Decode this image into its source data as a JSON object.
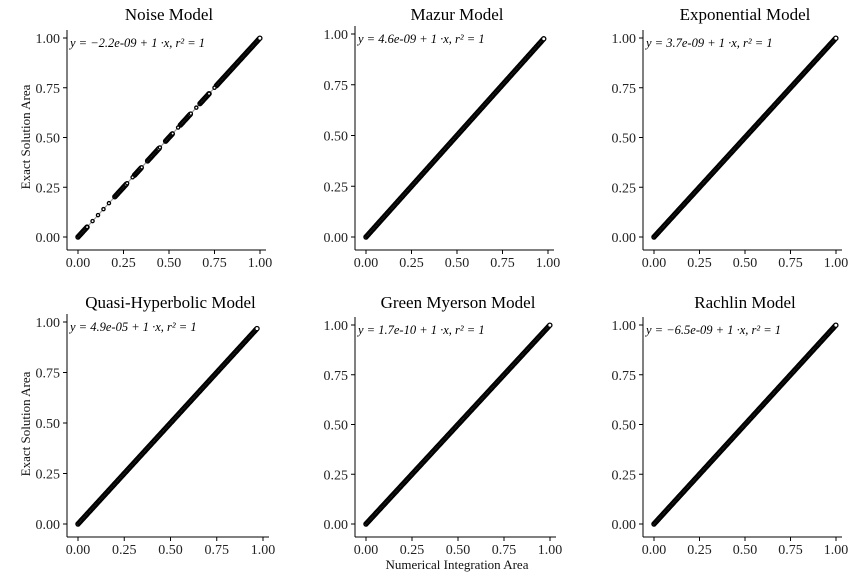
{
  "figure": {
    "xlabel": "Numerical Integration Area",
    "ylabel": "Exact Solution Area"
  },
  "chart_data": [
    {
      "type": "scatter",
      "title": "Noise Model",
      "equation": "y = −2.2e-09 + 1 ·x,  r² = 1",
      "xlim": [
        0,
        1
      ],
      "ylim": [
        0,
        1
      ],
      "xticks": [
        "0.00",
        "0.25",
        "0.50",
        "0.75",
        "1.00"
      ],
      "yticks": [
        "0.00",
        "0.25",
        "0.50",
        "0.75",
        "1.00"
      ],
      "fit": {
        "intercept": -2.2e-09,
        "slope": 1,
        "r2": 1
      },
      "points_x_range": [
        0,
        1.0
      ],
      "gaps": [
        [
          0.05,
          0.2
        ],
        [
          0.27,
          0.31
        ],
        [
          0.35,
          0.38
        ],
        [
          0.45,
          0.48
        ],
        [
          0.52,
          0.56
        ],
        [
          0.62,
          0.67
        ],
        [
          0.72,
          0.76
        ]
      ]
    },
    {
      "type": "scatter",
      "title": "Mazur Model",
      "equation": "y = 4.6e-09 + 1 ·x,  r² = 1",
      "xlim": [
        0,
        1
      ],
      "ylim": [
        0,
        1
      ],
      "xticks": [
        "0.00",
        "0.25",
        "0.50",
        "0.75",
        "1.00"
      ],
      "yticks": [
        "0.00",
        "0.25",
        "0.50",
        "0.75",
        "1.00"
      ],
      "fit": {
        "intercept": 4.6e-09,
        "slope": 1,
        "r2": 1
      },
      "points_x_range": [
        0,
        0.98
      ],
      "gaps": []
    },
    {
      "type": "scatter",
      "title": "Exponential Model",
      "equation": "y = 3.7e-09 + 1 ·x,  r² = 1",
      "xlim": [
        0,
        1
      ],
      "ylim": [
        0,
        1
      ],
      "xticks": [
        "0.00",
        "0.25",
        "0.50",
        "0.75",
        "1.00"
      ],
      "yticks": [
        "0.00",
        "0.25",
        "0.50",
        "0.75",
        "1.00"
      ],
      "fit": {
        "intercept": 3.7e-09,
        "slope": 1,
        "r2": 1
      },
      "points_x_range": [
        0,
        1.0
      ],
      "gaps": []
    },
    {
      "type": "scatter",
      "title": "Quasi-Hyperbolic Model",
      "equation": "y = 4.9e-05 + 1 ·x,  r² = 1",
      "xlim": [
        0,
        1
      ],
      "ylim": [
        0,
        1
      ],
      "xticks": [
        "0.00",
        "0.25",
        "0.50",
        "0.75",
        "1.00"
      ],
      "yticks": [
        "0.00",
        "0.25",
        "0.50",
        "0.75",
        "1.00"
      ],
      "fit": {
        "intercept": 4.9e-05,
        "slope": 1,
        "r2": 1
      },
      "points_x_range": [
        0,
        0.97
      ],
      "gaps": []
    },
    {
      "type": "scatter",
      "title": "Green Myerson Model",
      "equation": "y = 1.7e-10 + 1 ·x,  r² = 1",
      "xlim": [
        0,
        1
      ],
      "ylim": [
        0,
        1
      ],
      "xticks": [
        "0.00",
        "0.25",
        "0.50",
        "0.75",
        "1.00"
      ],
      "yticks": [
        "0.00",
        "0.25",
        "0.50",
        "0.75",
        "1.00"
      ],
      "fit": {
        "intercept": 1.7e-10,
        "slope": 1,
        "r2": 1
      },
      "points_x_range": [
        0,
        1.0
      ],
      "gaps": []
    },
    {
      "type": "scatter",
      "title": "Rachlin Model",
      "equation": "y = −6.5e-09 + 1 ·x,  r² = 1",
      "xlim": [
        0,
        1
      ],
      "ylim": [
        0,
        1
      ],
      "xticks": [
        "0.00",
        "0.25",
        "0.50",
        "0.75",
        "1.00"
      ],
      "yticks": [
        "0.00",
        "0.25",
        "0.50",
        "0.75",
        "1.00"
      ],
      "fit": {
        "intercept": -6.5e-09,
        "slope": 1,
        "r2": 1
      },
      "points_x_range": [
        0,
        1.0
      ],
      "gaps": []
    }
  ]
}
